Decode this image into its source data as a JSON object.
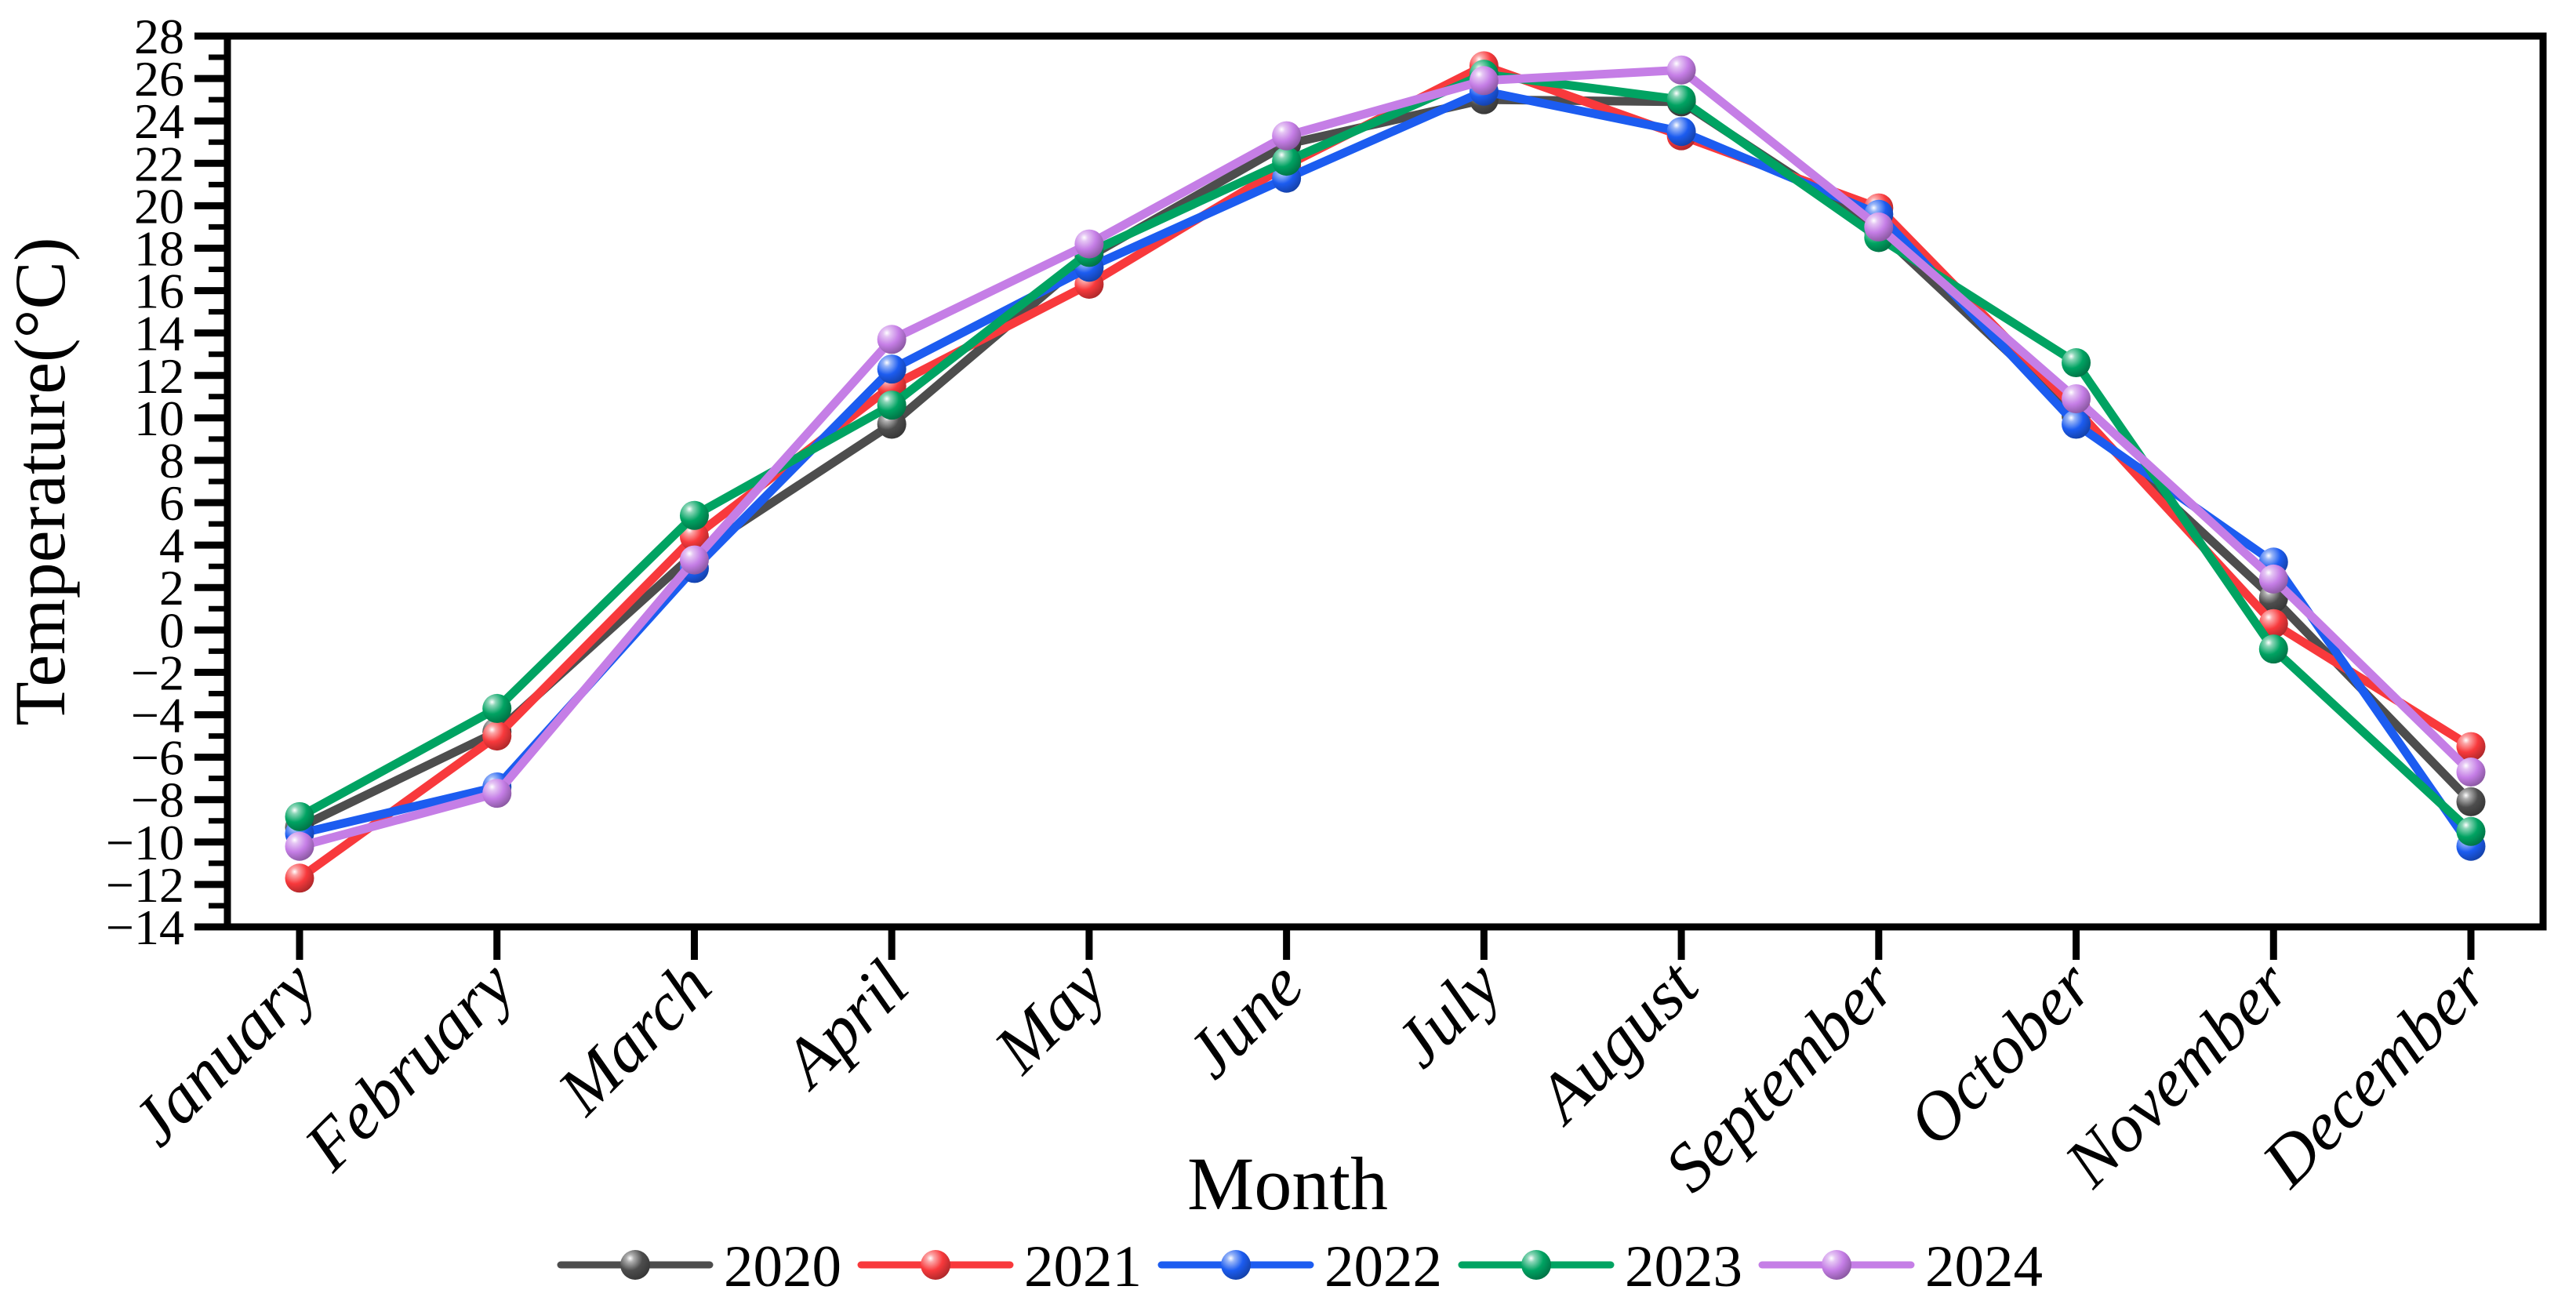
{
  "figure": {
    "background": "#ffffff",
    "axis_color": "#000000"
  },
  "chart_data": {
    "type": "line",
    "title": "",
    "xlabel": "Month",
    "ylabel": "Temperature(°C)",
    "categories": [
      "January",
      "February",
      "March",
      "April",
      "May",
      "June",
      "July",
      "August",
      "September",
      "October",
      "November",
      "December"
    ],
    "series": [
      {
        "name": "2020",
        "color": "#4d4d4d",
        "values": [
          -9.3,
          -4.8,
          3.6,
          9.7,
          17.6,
          22.9,
          25.0,
          24.9,
          18.8,
          10.1,
          1.5,
          -8.1
        ]
      },
      {
        "name": "2021",
        "color": "#f8393c",
        "values": [
          -11.7,
          -5.0,
          4.4,
          11.5,
          16.3,
          21.9,
          26.6,
          23.3,
          19.9,
          10.4,
          0.3,
          -5.5
        ]
      },
      {
        "name": "2022",
        "color": "#1c5cf0",
        "values": [
          -9.6,
          -7.4,
          2.9,
          12.3,
          17.1,
          21.3,
          25.4,
          23.5,
          19.6,
          9.7,
          3.2,
          -10.2
        ]
      },
      {
        "name": "2023",
        "color": "#00a362",
        "values": [
          -8.8,
          -3.7,
          5.4,
          10.6,
          17.8,
          22.1,
          26.2,
          25.0,
          18.5,
          12.6,
          -0.9,
          -9.5
        ]
      },
      {
        "name": "2024",
        "color": "#c57ee6",
        "values": [
          -10.2,
          -7.7,
          3.3,
          13.7,
          18.2,
          23.3,
          25.9,
          26.4,
          19.0,
          10.9,
          2.4,
          -6.7
        ]
      }
    ],
    "ylim": [
      -14,
      28
    ],
    "ytick_step": 2,
    "yminor_step": 1,
    "ytick_labels": [
      "−14",
      "−12",
      "−10",
      "−8",
      "−6",
      "−4",
      "−2",
      "0",
      "2",
      "4",
      "6",
      "8",
      "10",
      "12",
      "14",
      "16",
      "18",
      "20",
      "22",
      "24",
      "26",
      "28"
    ],
    "grid": false,
    "legend_position": "bottom",
    "marker": "sphere"
  }
}
